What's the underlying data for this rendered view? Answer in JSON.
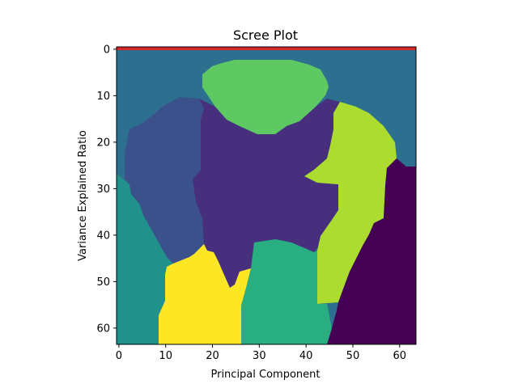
{
  "chart_data": {
    "type": "heatmap",
    "title": "Scree Plot",
    "xlabel": "Principal Component",
    "ylabel": "Variance Explained Ratio",
    "xlim": [
      -0.5,
      63.5
    ],
    "ylim": [
      63.5,
      -0.5
    ],
    "grid": false,
    "x_ticks": [
      "0",
      "10",
      "20",
      "30",
      "40",
      "50",
      "60"
    ],
    "y_ticks": [
      "0",
      "10",
      "20",
      "30",
      "40",
      "50",
      "60"
    ],
    "colormap": "viridis",
    "colors": {
      "top_band": "#d62728",
      "background_teal": "#2d6f8e",
      "light_green": "#5ec962",
      "indigo": "#472f7d",
      "blue": "#3b518b",
      "lime": "#addc30",
      "dark_purple": "#440154",
      "teal_green": "#21918c",
      "green": "#28ae80",
      "yellow": "#fde725"
    }
  }
}
